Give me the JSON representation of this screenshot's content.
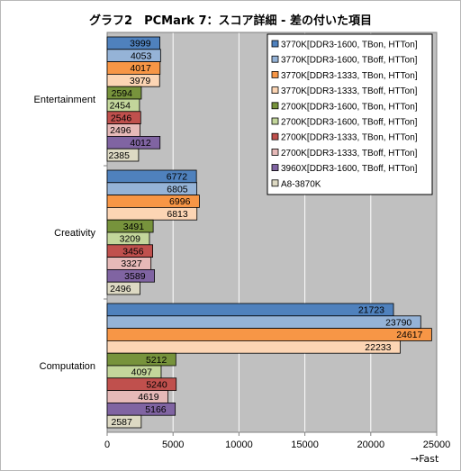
{
  "chart_data": {
    "type": "bar",
    "orientation": "horizontal",
    "title": "グラフ2　PCMark 7：スコア詳細 - 差の付いた項目",
    "categories": [
      "Entertainment",
      "Creativity",
      "Computation"
    ],
    "xlim": [
      0,
      25000
    ],
    "xticks": [
      0,
      5000,
      10000,
      15000,
      20000,
      25000
    ],
    "xlabel": "→Fast",
    "grid": true,
    "legend_position": "top-right",
    "series": [
      {
        "name": "3770K[DDR3-1600, TBon, HTTon]",
        "color": "#4f81bd",
        "values": [
          3999,
          6772,
          21723
        ]
      },
      {
        "name": "3770K[DDR3-1600, TBoff, HTTon]",
        "color": "#95b3d7",
        "values": [
          4053,
          6805,
          23790
        ]
      },
      {
        "name": "3770K[DDR3-1333, TBon, HTTon]",
        "color": "#f79646",
        "values": [
          4017,
          6996,
          24617
        ]
      },
      {
        "name": "3770K[DDR3-1333, TBoff, HTTon]",
        "color": "#fcd5b4",
        "values": [
          3979,
          6813,
          22233
        ]
      },
      {
        "name": "2700K[DDR3-1600, TBon, HTTon]",
        "color": "#77933c",
        "values": [
          2594,
          3491,
          5212
        ]
      },
      {
        "name": "2700K[DDR3-1600, TBoff, HTTon]",
        "color": "#c3d69b",
        "values": [
          2454,
          3209,
          4097
        ]
      },
      {
        "name": "2700K[DDR3-1333, TBon, HTTon]",
        "color": "#c0504d",
        "values": [
          2546,
          3456,
          5240
        ]
      },
      {
        "name": "2700K[DDR3-1333, TBoff, HTTon]",
        "color": "#e6b9b8",
        "values": [
          2496,
          3327,
          4619
        ]
      },
      {
        "name": "3960X[DDR3-1600, TBoff, HTTon]",
        "color": "#8064a2",
        "values": [
          4012,
          3589,
          5166
        ]
      },
      {
        "name": "A8-3870K",
        "color": "#ddd9c3",
        "values": [
          2385,
          2496,
          2587
        ]
      }
    ],
    "colors": {
      "plot_background": "#c0c0c0",
      "gridline": "#ffffff",
      "frame": "#b8b8b8"
    }
  }
}
